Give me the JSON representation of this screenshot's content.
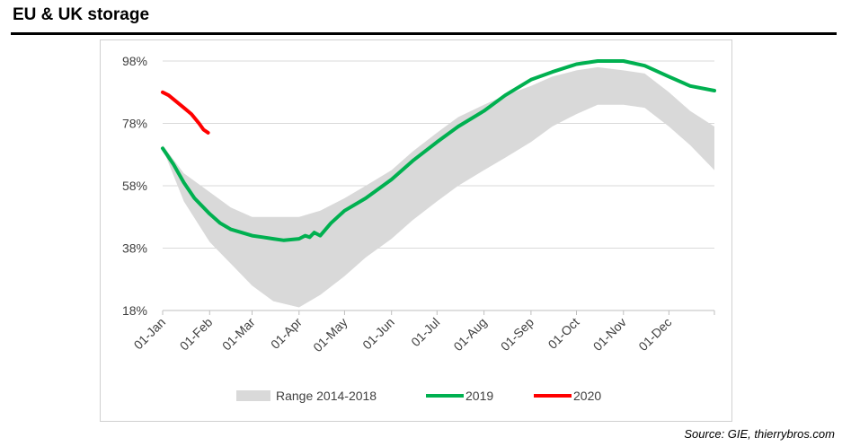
{
  "title": "EU & UK storage",
  "source": "Source: GIE, thierrybros.com",
  "chart_data": {
    "type": "line",
    "title": "EU & UK storage",
    "xlabel": "",
    "ylabel": "",
    "x_axis": "date",
    "x_range": [
      "01-Jan",
      "31-Dec"
    ],
    "x_ticks": [
      "01-Jan",
      "01-Feb",
      "01-Mar",
      "01-Apr",
      "01-May",
      "01-Jun",
      "01-Jul",
      "01-Aug",
      "01-Sep",
      "01-Oct",
      "01-Nov",
      "01-Dec"
    ],
    "y_ticks": [
      "98%",
      "78%",
      "58%",
      "38%",
      "18%"
    ],
    "ylim": [
      18,
      98
    ],
    "y_unit": "%",
    "grid": "horizontal",
    "legend_position": "bottom",
    "band": {
      "name": "Range 2014-2018",
      "color": "#d9d9d9",
      "x": [
        "01-Jan",
        "15-Jan",
        "01-Feb",
        "15-Feb",
        "01-Mar",
        "15-Mar",
        "01-Apr",
        "15-Apr",
        "01-May",
        "15-May",
        "01-Jun",
        "15-Jun",
        "01-Jul",
        "15-Jul",
        "01-Aug",
        "15-Aug",
        "01-Sep",
        "15-Sep",
        "01-Oct",
        "15-Oct",
        "01-Nov",
        "15-Nov",
        "01-Dec",
        "15-Dec",
        "31-Dec"
      ],
      "low": [
        70,
        53,
        40,
        33,
        26,
        21,
        19,
        23,
        29,
        35,
        41,
        47,
        53,
        58,
        63,
        67,
        72,
        77,
        81,
        84,
        84,
        83,
        77,
        71,
        63
      ],
      "high": [
        71,
        62,
        56,
        51,
        48,
        48,
        48,
        50,
        54,
        58,
        63,
        69,
        75,
        80,
        84,
        87,
        90,
        93,
        95,
        96,
        95,
        94,
        88,
        82,
        77
      ]
    },
    "series": [
      {
        "name": "2019",
        "color": "#00b050",
        "x": [
          "01-Jan",
          "08-Jan",
          "15-Jan",
          "22-Jan",
          "01-Feb",
          "08-Feb",
          "15-Feb",
          "22-Feb",
          "01-Mar",
          "08-Mar",
          "15-Mar",
          "22-Mar",
          "01-Apr",
          "05-Apr",
          "08-Apr",
          "11-Apr",
          "15-Apr",
          "22-Apr",
          "01-May",
          "15-May",
          "01-Jun",
          "15-Jun",
          "01-Jul",
          "15-Jul",
          "01-Aug",
          "15-Aug",
          "01-Sep",
          "15-Sep",
          "01-Oct",
          "15-Oct",
          "01-Nov",
          "15-Nov",
          "01-Dec",
          "15-Dec",
          "31-Dec"
        ],
        "values": [
          70,
          65,
          59,
          54,
          49,
          46,
          44,
          43,
          42,
          41.5,
          41,
          40.5,
          41,
          42,
          41.5,
          43,
          42,
          46,
          50,
          54,
          60,
          66,
          72,
          77,
          82,
          87,
          92,
          94.5,
          97,
          98,
          98,
          96.5,
          93,
          90,
          88.5
        ]
      },
      {
        "name": "2020",
        "color": "#ff0000",
        "x": [
          "01-Jan",
          "05-Jan",
          "10-Jan",
          "15-Jan",
          "20-Jan",
          "25-Jan",
          "28-Jan",
          "31-Jan"
        ],
        "values": [
          88,
          87,
          85,
          83,
          81,
          78,
          76,
          75
        ]
      }
    ]
  }
}
